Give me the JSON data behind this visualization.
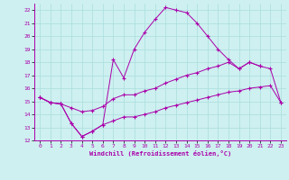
{
  "xlabel": "Windchill (Refroidissement éolien,°C)",
  "bg_color": "#cef0f0",
  "grid_color": "#aadddd",
  "line_color": "#aa00aa",
  "xlim": [
    -0.5,
    23.5
  ],
  "ylim": [
    12,
    22.5
  ],
  "yticks": [
    12,
    13,
    14,
    15,
    16,
    17,
    18,
    19,
    20,
    21,
    22
  ],
  "xticks": [
    0,
    1,
    2,
    3,
    4,
    5,
    6,
    7,
    8,
    9,
    10,
    11,
    12,
    13,
    14,
    15,
    16,
    17,
    18,
    19,
    20,
    21,
    22,
    23
  ],
  "series": [
    {
      "x": [
        0,
        1,
        2,
        3,
        4,
        5,
        6,
        7,
        8,
        9,
        10,
        11,
        12,
        13,
        14,
        15,
        16,
        17,
        18,
        19,
        20,
        21
      ],
      "y": [
        15.3,
        14.9,
        14.8,
        13.3,
        12.3,
        12.7,
        13.2,
        18.2,
        16.8,
        19.0,
        20.3,
        21.3,
        22.2,
        22.0,
        21.8,
        21.0,
        20.0,
        19.0,
        18.2,
        17.5,
        18.0,
        17.7
      ]
    },
    {
      "x": [
        0,
        1,
        2,
        3,
        4,
        5,
        6,
        7,
        8,
        9,
        10,
        11,
        12,
        13,
        14,
        15,
        16,
        17,
        18,
        19,
        20,
        21,
        22,
        23
      ],
      "y": [
        15.3,
        14.9,
        14.8,
        14.5,
        14.2,
        14.3,
        14.6,
        15.2,
        15.5,
        15.5,
        15.8,
        16.0,
        16.4,
        16.7,
        17.0,
        17.2,
        17.5,
        17.7,
        18.0,
        17.5,
        18.0,
        17.7,
        17.5,
        14.9
      ]
    },
    {
      "x": [
        0,
        1,
        2,
        3,
        4,
        5,
        6,
        7,
        8,
        9,
        10,
        11,
        12,
        13,
        14,
        15,
        16,
        17,
        18,
        19,
        20,
        21,
        22,
        23
      ],
      "y": [
        15.3,
        14.9,
        14.8,
        13.3,
        12.3,
        12.7,
        13.2,
        13.5,
        13.8,
        13.8,
        14.0,
        14.2,
        14.5,
        14.7,
        14.9,
        15.1,
        15.3,
        15.5,
        15.7,
        15.8,
        16.0,
        16.1,
        16.2,
        14.9
      ]
    }
  ]
}
